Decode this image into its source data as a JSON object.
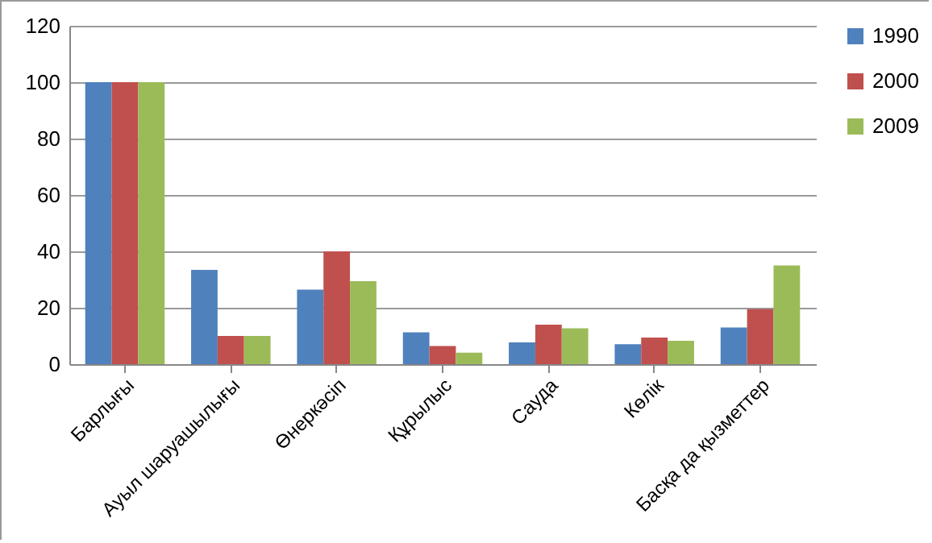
{
  "chart_data": {
    "type": "bar",
    "categories": [
      "Барлығы",
      "Ауыл шаруашылығы",
      "Өнеркәсіп",
      "Құрылыс",
      "Сауда",
      "Көлік",
      "Басқа да қызметтер"
    ],
    "series": [
      {
        "name": "1990",
        "color": "#4f81bd",
        "values": [
          100,
          33.4,
          26.4,
          11.3,
          7.7,
          7.1,
          13
        ]
      },
      {
        "name": "2000",
        "color": "#c0504d",
        "values": [
          100,
          10,
          40,
          6.4,
          14,
          9.4,
          19.5
        ]
      },
      {
        "name": "2009",
        "color": "#9bbb59",
        "values": [
          100,
          10,
          29.4,
          4.1,
          12.7,
          8.3,
          35
        ]
      }
    ],
    "ylim": [
      0,
      120
    ],
    "yticks": [
      0,
      20,
      40,
      60,
      80,
      100,
      120
    ],
    "grid": "y",
    "legend": "right"
  }
}
